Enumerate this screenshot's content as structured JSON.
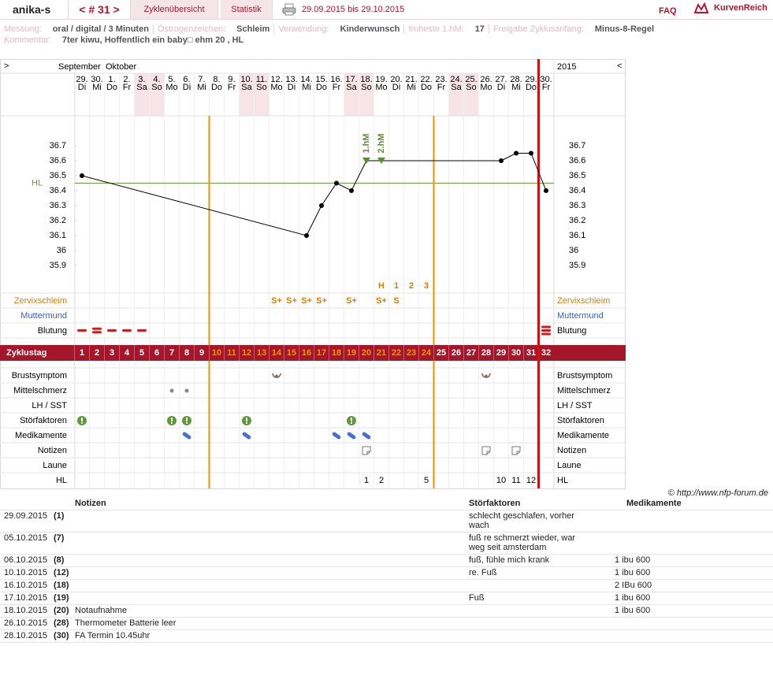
{
  "header": {
    "user": "anika-s",
    "cycle": "< # 31 >",
    "tabs": [
      "Zyklenübersicht",
      "Statistik"
    ],
    "period": "29.09.2015 bis 29.10.2015",
    "faq": "FAQ",
    "logo": "KurvenReich"
  },
  "info": [
    {
      "label": "Messung:",
      "value": "oral / digital / 3 Minuten"
    },
    {
      "label": "Östrogenzeichen:",
      "value": "Schleim"
    },
    {
      "label": "Verwendung:",
      "value": "Kinderwunsch"
    },
    {
      "label": "früheste 1.hM:",
      "value": "17"
    },
    {
      "label": "Freigabe Zyklusanfang:",
      "value": "Minus-8-Regel"
    }
  ],
  "comment": {
    "label": "Kommentar:",
    "value": "7ter kiwu, Hoffentlich ein baby□ ehm 20 , HL"
  },
  "chart_data": {
    "type": "line",
    "nav": [
      ">",
      "<"
    ],
    "months": [
      "September",
      "Oktober"
    ],
    "year": 2015,
    "days": [
      {
        "date": "29.",
        "weekday": "Di"
      },
      {
        "date": "30.",
        "weekday": "Mi"
      },
      {
        "date": "1.",
        "weekday": "Do"
      },
      {
        "date": "2.",
        "weekday": "Fr"
      },
      {
        "date": "3.",
        "weekday": "Sa"
      },
      {
        "date": "4.",
        "weekday": "So"
      },
      {
        "date": "5.",
        "weekday": "Mo"
      },
      {
        "date": "6.",
        "weekday": "Di"
      },
      {
        "date": "7.",
        "weekday": "Mi"
      },
      {
        "date": "8.",
        "weekday": "Do"
      },
      {
        "date": "9.",
        "weekday": "Fr"
      },
      {
        "date": "10.",
        "weekday": "Sa"
      },
      {
        "date": "11.",
        "weekday": "So"
      },
      {
        "date": "12.",
        "weekday": "Mo"
      },
      {
        "date": "13.",
        "weekday": "Di"
      },
      {
        "date": "14.",
        "weekday": "Mi"
      },
      {
        "date": "15.",
        "weekday": "Do"
      },
      {
        "date": "16.",
        "weekday": "Fr"
      },
      {
        "date": "17.",
        "weekday": "Sa"
      },
      {
        "date": "18.",
        "weekday": "So"
      },
      {
        "date": "19.",
        "weekday": "Mo"
      },
      {
        "date": "20.",
        "weekday": "Di"
      },
      {
        "date": "21.",
        "weekday": "Mi"
      },
      {
        "date": "22.",
        "weekday": "Do"
      },
      {
        "date": "23.",
        "weekday": "Fr"
      },
      {
        "date": "24.",
        "weekday": "Sa"
      },
      {
        "date": "25.",
        "weekday": "So"
      },
      {
        "date": "26.",
        "weekday": "Mo"
      },
      {
        "date": "27.",
        "weekday": "Di"
      },
      {
        "date": "28.",
        "weekday": "Mi"
      },
      {
        "date": "29.",
        "weekday": "Do"
      },
      {
        "date": "30.",
        "weekday": "Fr"
      }
    ],
    "ylim": [
      35.7,
      36.9
    ],
    "yticks": [
      35.9,
      36,
      36.1,
      36.2,
      36.3,
      36.4,
      36.5,
      36.6,
      36.7
    ],
    "x": [
      1,
      16,
      17,
      18,
      19,
      20,
      21,
      29,
      30,
      31,
      32
    ],
    "values": [
      36.5,
      36.1,
      36.3,
      36.45,
      36.4,
      36.6,
      36.6,
      36.6,
      36.65,
      36.65,
      36.4
    ],
    "color": "#000000",
    "coverline": {
      "label": "HL",
      "value": 36.45,
      "color": "#6a9a3a"
    },
    "rise_markers": {
      "x": [
        20,
        21
      ],
      "labels": [
        "1.hM",
        "2.hM"
      ],
      "color": "#5e8c36"
    },
    "peak": {
      "days": [
        21,
        22,
        23,
        24
      ],
      "labels": [
        "H",
        "1",
        "2",
        "3"
      ],
      "color": "#e07b00"
    },
    "fertile_window": [
      10,
      24
    ],
    "cycle_label": "Zyklustag",
    "cycle_days": [
      1,
      2,
      3,
      4,
      5,
      6,
      7,
      8,
      9,
      10,
      11,
      12,
      13,
      14,
      15,
      16,
      17,
      18,
      19,
      20,
      21,
      22,
      23,
      24,
      25,
      26,
      27,
      28,
      29,
      30,
      31,
      32
    ],
    "rows_top": [
      {
        "label": "Zervixschleim",
        "color": "#e07b00",
        "icon": "text",
        "days": [
          14,
          15,
          16,
          17,
          19,
          21,
          22
        ],
        "labels": [
          "S+",
          "S+",
          "S+",
          "S+",
          "S+",
          "S+",
          "S"
        ]
      },
      {
        "label": "Muttermund",
        "color": "#3b5fc0",
        "icon": "none"
      },
      {
        "label": "Blutung",
        "color": "#000000",
        "icon": "bleeding",
        "days": [
          1,
          2,
          3,
          4,
          5,
          32
        ],
        "levels": [
          1,
          2,
          1,
          1,
          1,
          3
        ]
      }
    ],
    "rows_bottom": [
      {
        "label": "Brustsymptom",
        "icon": "breast",
        "days": [
          14,
          28
        ]
      },
      {
        "label": "Mittelschmerz",
        "icon": "dot",
        "days": [
          7,
          8
        ]
      },
      {
        "label": "LH / SST",
        "icon": "none"
      },
      {
        "label": "Störfaktoren",
        "icon": "alert",
        "days": [
          1,
          7,
          8,
          12,
          19
        ]
      },
      {
        "label": "Medikamente",
        "icon": "pill",
        "days": [
          8,
          12,
          18,
          19,
          20
        ]
      },
      {
        "label": "Notizen",
        "icon": "note",
        "days": [
          20,
          28,
          30
        ]
      },
      {
        "label": "Laune",
        "icon": "none"
      },
      {
        "label": "HL",
        "icon": "number",
        "days": [
          20,
          21,
          24,
          29,
          30,
          31
        ],
        "numbers": [
          1,
          2,
          5,
          10,
          11,
          12
        ]
      }
    ]
  },
  "copyright": "© http://www.nfp-forum.de",
  "notes_table": {
    "headers": [
      "Notizen",
      "Störfaktoren",
      "Medikamente"
    ],
    "rows": [
      {
        "date": "29.09.2015",
        "day": "(1)",
        "factor": "schlecht geschlafen, vorher wach"
      },
      {
        "date": "05.10.2015",
        "day": "(7)",
        "factor": "fuß re schmerzt wieder, war weg seit amsterdam"
      },
      {
        "date": "06.10.2015",
        "day": "(8)",
        "factor": "fuß, fühle mich krank",
        "medication": "1 ibu 600"
      },
      {
        "date": "10.10.2015",
        "day": "(12)",
        "factor": "re. Fuß",
        "medication": "1 ibu 600"
      },
      {
        "date": "16.10.2015",
        "day": "(18)",
        "medication": "2 IBu 600"
      },
      {
        "date": "17.10.2015",
        "day": "(19)",
        "factor": "Fuß",
        "medication": "1 ibu 600"
      },
      {
        "date": "18.10.2015",
        "day": "(20)",
        "note": "Notaufnahme",
        "medication": "1 ibu 600"
      },
      {
        "date": "26.10.2015",
        "day": "(28)",
        "note": "Thermometer Batterie leer"
      },
      {
        "date": "28.10.2015",
        "day": "(30)",
        "note": "FA Termin 10.45uhr"
      }
    ]
  }
}
